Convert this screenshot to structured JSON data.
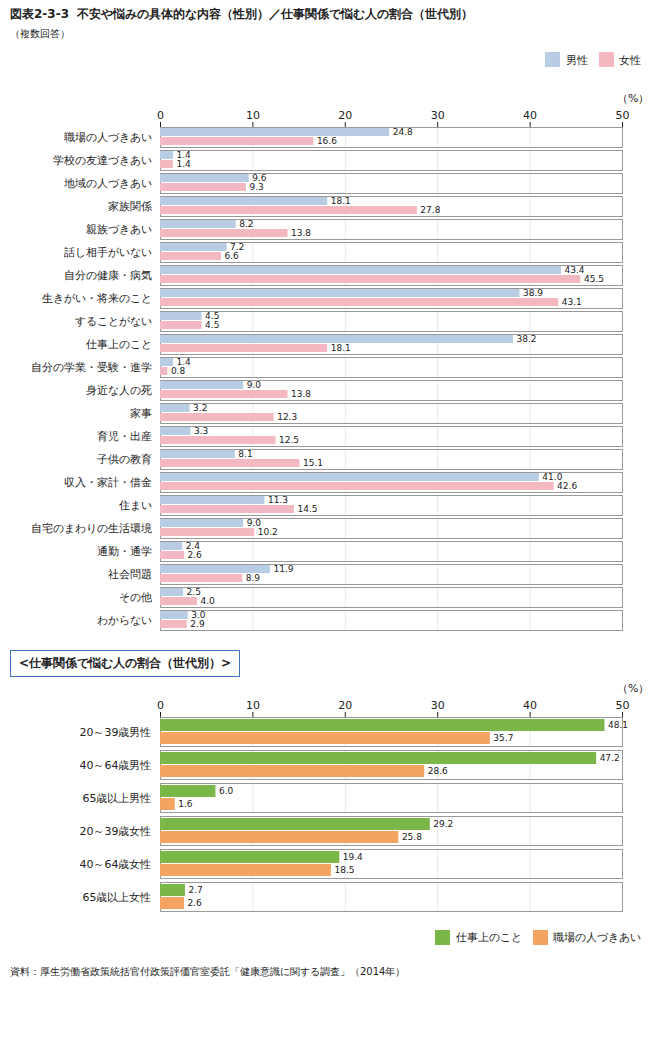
{
  "title_label": "図表2-3-3",
  "title": "不安や悩みの具体的な内容（性別）／仕事関係で悩む人の割合（世代別）",
  "caption": "資料：厚生労働省政策統括官付政策評価官室委託「健康意識に関する調査」（2014年）",
  "chart_data": [
    {
      "type": "bar",
      "orientation": "horizontal",
      "subtitle": "（複数回答）",
      "xlabel": "（%）",
      "categories": [
        "職場の人づきあい",
        "学校の友達づきあい",
        "地域の人づきあい",
        "家族関係",
        "親族づきあい",
        "話し相手がいない",
        "自分の健康・病気",
        "生きがい・将来のこと",
        "することがない",
        "仕事上のこと",
        "自分の学業・受験・進学",
        "身近な人の死",
        "家事",
        "育児・出産",
        "子供の教育",
        "収入・家計・借金",
        "住まい",
        "自宅のまわりの生活環境",
        "通勤・通学",
        "社会問題",
        "その他",
        "わからない"
      ],
      "series": [
        {
          "name": "男性",
          "color": "#b8cce4",
          "values": [
            24.8,
            1.4,
            9.6,
            18.1,
            8.2,
            7.2,
            43.4,
            38.9,
            4.5,
            38.2,
            1.4,
            9.0,
            3.2,
            3.3,
            8.1,
            41.0,
            11.3,
            9.0,
            2.4,
            11.9,
            2.5,
            3.0
          ],
          "value_labels": [
            "24.8",
            "1.4",
            "9.6",
            "18.1",
            "8.2",
            "7.2",
            "43.4",
            "38.9",
            "4.5",
            "38.2",
            "1.4",
            "9.0",
            "3.2",
            "3.3",
            "8.1",
            "41.0",
            "11.3",
            "9.0",
            "2.4",
            "11.9",
            "2.5",
            "3.0"
          ]
        },
        {
          "name": "女性",
          "color": "#f4b8c1",
          "values": [
            16.6,
            1.4,
            9.3,
            27.8,
            13.8,
            6.6,
            45.5,
            43.1,
            4.5,
            18.1,
            0.8,
            13.8,
            12.3,
            12.5,
            15.1,
            42.6,
            14.5,
            10.2,
            2.6,
            8.9,
            4.0,
            2.9
          ],
          "value_labels": [
            "16.6",
            "1.4",
            "9.3",
            "27.8",
            "13.8",
            "6.6",
            "45.5",
            "43.1",
            "4.5",
            "18.1",
            "0.8",
            "13.8",
            "12.3",
            "12.5",
            "15.1",
            "42.6",
            "14.5",
            "10.2",
            "2.6",
            "8.9",
            "4.0",
            "2.9"
          ]
        }
      ],
      "xlim": [
        0,
        50
      ],
      "xticks": [
        0,
        10,
        20,
        30,
        40,
        50
      ],
      "grid": true,
      "legend": "upper right",
      "data_labels": true
    },
    {
      "type": "bar",
      "orientation": "horizontal",
      "title": "<仕事関係で悩む人の割合（世代別）>",
      "xlabel": "（%）",
      "categories": [
        "20～39歳男性",
        "40～64歳男性",
        "65歳以上男性",
        "20～39歳女性",
        "40～64歳女性",
        "65歳以上女性"
      ],
      "series": [
        {
          "name": "仕事上のこと",
          "color": "#7ab648",
          "values": [
            48.1,
            47.2,
            6.0,
            29.2,
            19.4,
            2.7
          ],
          "value_labels": [
            "48.1",
            "47.2",
            "6.0",
            "29.2",
            "19.4",
            "2.7"
          ]
        },
        {
          "name": "職場の人づきあい",
          "color": "#f4a460",
          "values": [
            35.7,
            28.6,
            1.6,
            25.8,
            18.5,
            2.6
          ],
          "value_labels": [
            "35.7",
            "28.6",
            "1.6",
            "25.8",
            "18.5",
            "2.6"
          ]
        }
      ],
      "xlim": [
        0,
        50
      ],
      "xticks": [
        0,
        10,
        20,
        30,
        40,
        50
      ],
      "grid": true,
      "legend": "lower right",
      "data_labels": true
    }
  ]
}
